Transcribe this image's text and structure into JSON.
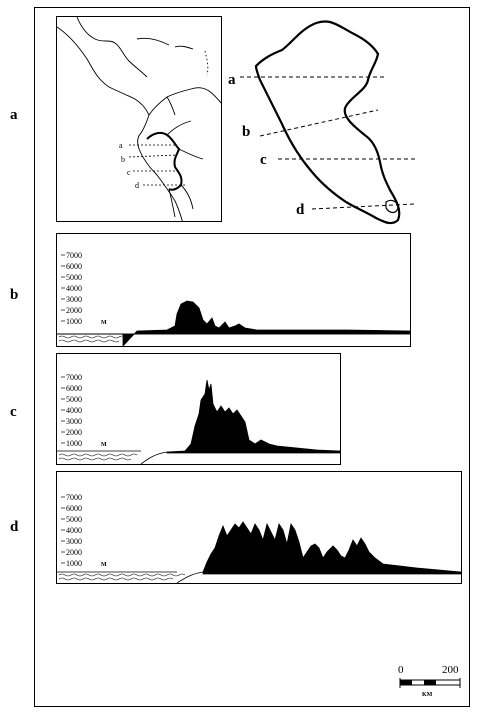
{
  "panel_letters": {
    "a": "a",
    "b": "b",
    "c": "c",
    "d": "d"
  },
  "map": {
    "section_labels": [
      "a",
      "b",
      "c",
      "d"
    ],
    "inset_section_labels": [
      "a",
      "b",
      "c",
      "d"
    ]
  },
  "profiles": {
    "elevation_ticks": [
      "7000",
      "6000",
      "5000",
      "4000",
      "3000",
      "2000",
      "1000"
    ],
    "unit": "M",
    "b": {
      "peak_elevation_m": 3000
    },
    "c": {
      "peak_elevation_m": 6800
    },
    "d": {
      "peak_elevation_m": 4500
    }
  },
  "scale_bar": {
    "start": "0",
    "end": "200",
    "unit": "KM"
  }
}
